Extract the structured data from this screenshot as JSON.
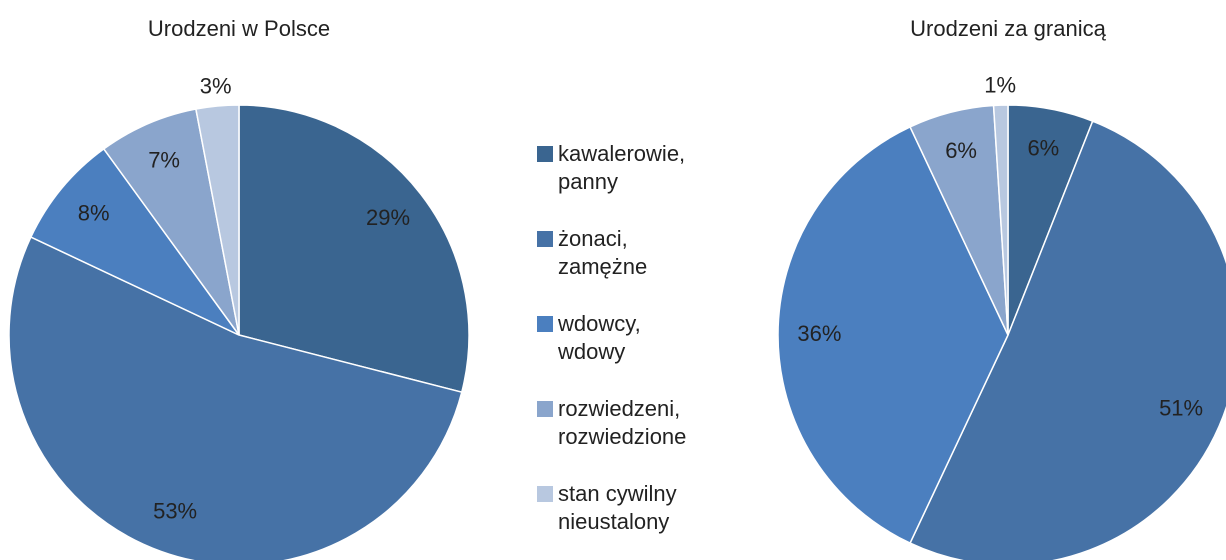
{
  "chart_data": [
    {
      "type": "pie",
      "title": "Urodzeni w Polsce",
      "categories": [
        "kawalerowie, panny",
        "żonaci, zamężne",
        "wdowcy, wdowy",
        "rozwiedzeni, rozwiedzione",
        "stan cywilny nieustalony"
      ],
      "colors": [
        "#3a6590",
        "#4672a6",
        "#4b7fbf",
        "#8aa5cc",
        "#b8c8e0"
      ],
      "values": [
        29,
        53,
        8,
        7,
        3
      ],
      "value_labels": [
        "29%",
        "53%",
        "8%",
        "7%",
        "3%"
      ]
    },
    {
      "type": "pie",
      "title": "Urodzeni za granicą",
      "values": [
        6,
        51,
        36,
        6,
        1
      ],
      "value_labels": [
        "6%",
        "51%",
        "36%",
        "6%",
        "1%"
      ]
    }
  ]
}
